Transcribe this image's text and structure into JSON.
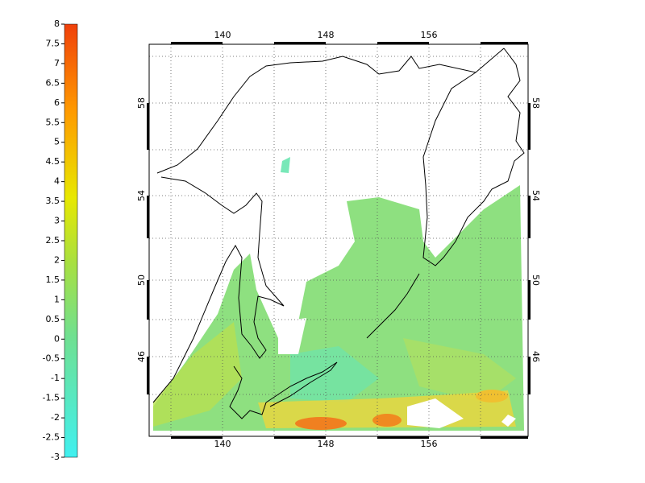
{
  "colorbar": {
    "ticks": [
      8,
      7.5,
      7,
      6.5,
      6,
      5.5,
      5,
      4.5,
      4,
      3.5,
      3,
      2.5,
      2,
      1.5,
      1,
      0.5,
      0,
      -0.5,
      -1,
      -1.5,
      -2,
      -2.5,
      -3
    ]
  },
  "map": {
    "longitude_labels": [
      140,
      148,
      156
    ],
    "latitude_labels": [
      58,
      54,
      50,
      46
    ]
  }
}
